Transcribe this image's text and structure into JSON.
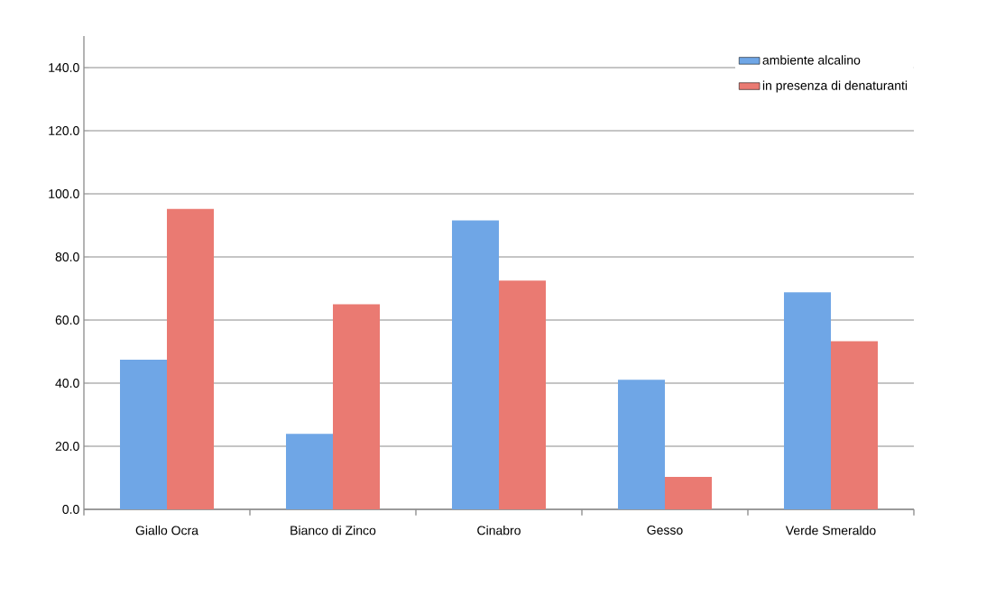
{
  "chart_data": {
    "type": "bar",
    "categories": [
      "Giallo Ocra",
      "Bianco di Zinco",
      "Cinabro",
      "Gesso",
      "Verde Smeraldo"
    ],
    "series": [
      {
        "name": "ambiente alcalino",
        "color": "#6fa6e6",
        "values": [
          47.4,
          23.9,
          91.6,
          41.1,
          68.8
        ]
      },
      {
        "name": "in presenza di denaturanti",
        "color": "#ea7a72",
        "values": [
          95.2,
          65.0,
          72.5,
          10.3,
          53.3
        ]
      }
    ],
    "ylim": [
      0,
      150
    ],
    "yticks": [
      {
        "value": 0,
        "label": "0.0"
      },
      {
        "value": 20,
        "label": "20.0"
      },
      {
        "value": 40,
        "label": "40.0"
      },
      {
        "value": 60,
        "label": "60.0"
      },
      {
        "value": 80,
        "label": "80.0"
      },
      {
        "value": 100,
        "label": "100.0"
      },
      {
        "value": 120,
        "label": "120.0"
      },
      {
        "value": 140,
        "label": "140.0"
      }
    ],
    "grid": "y",
    "legend": "top right"
  }
}
